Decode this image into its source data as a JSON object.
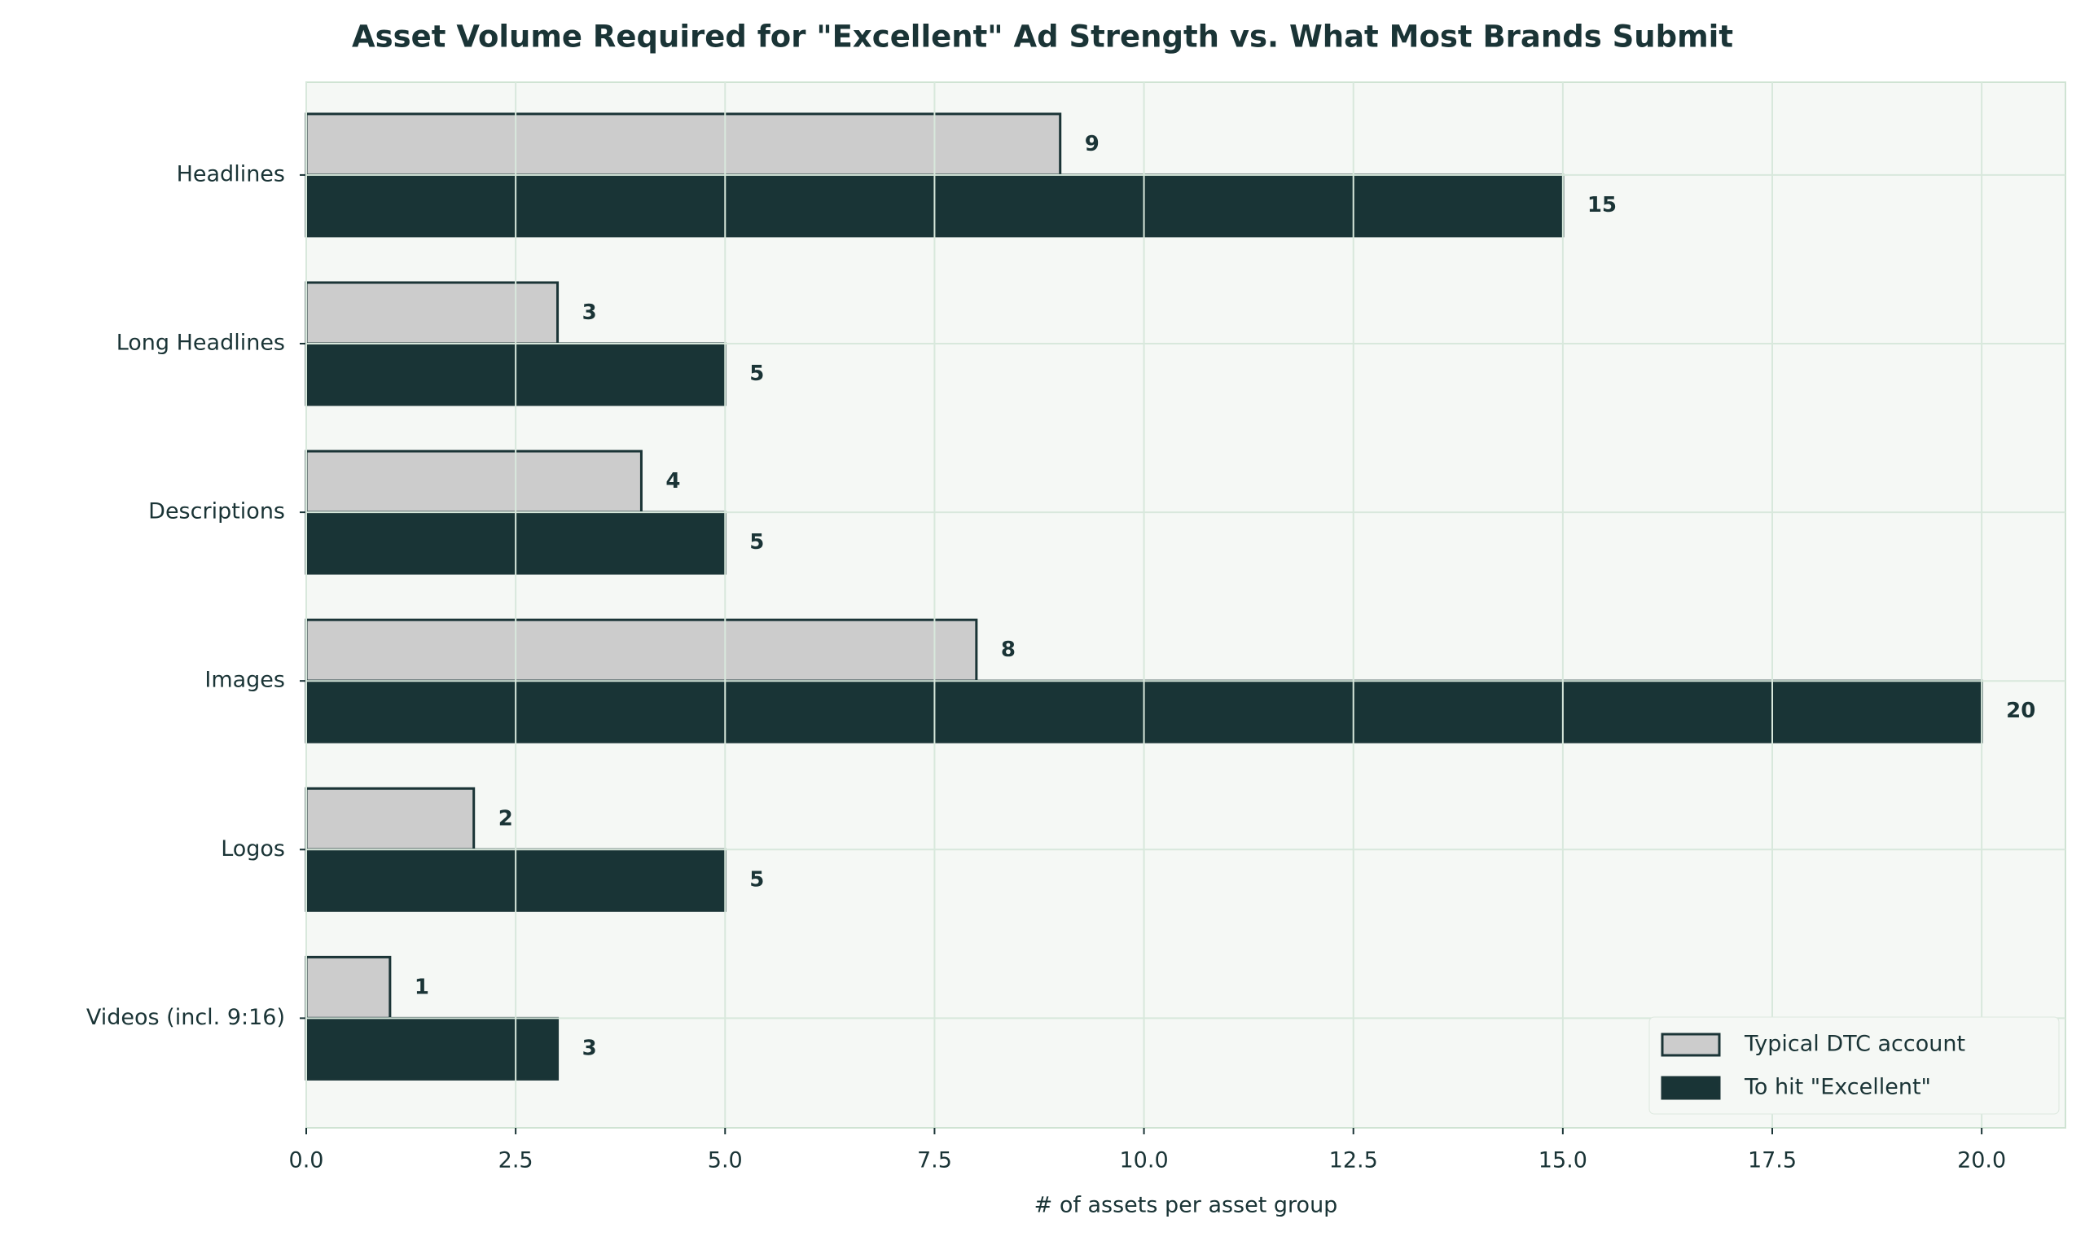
{
  "chart_data": {
    "type": "hbar",
    "title": "Asset Volume Required for \"Excellent\" Ad Strength vs. What Most Brands Submit",
    "x_label": "# of assets per asset group",
    "categories": [
      "Headlines",
      "Long Headlines",
      "Descriptions",
      "Images",
      "Logos",
      "Videos (incl. 9:16)"
    ],
    "series": [
      {
        "name": "Typical DTC account",
        "color": "#cccccc",
        "values": [
          9,
          3,
          4,
          8,
          2,
          1
        ]
      },
      {
        "name": "To hit \"Excellent\"",
        "color": "#193436",
        "values": [
          15,
          5,
          5,
          20,
          5,
          3
        ]
      }
    ],
    "xlim": [
      0,
      21
    ],
    "xticks": [
      {
        "value": 0,
        "label": "0.0"
      },
      {
        "value": 2.5,
        "label": "2.5"
      },
      {
        "value": 5,
        "label": "5.0"
      },
      {
        "value": 7.5,
        "label": "7.5"
      },
      {
        "value": 10,
        "label": "10.0"
      },
      {
        "value": 12.5,
        "label": "12.5"
      },
      {
        "value": 15,
        "label": "15.0"
      },
      {
        "value": 17.5,
        "label": "17.5"
      },
      {
        "value": 20,
        "label": "20.0"
      }
    ],
    "grid": true,
    "legend": "lower right"
  }
}
